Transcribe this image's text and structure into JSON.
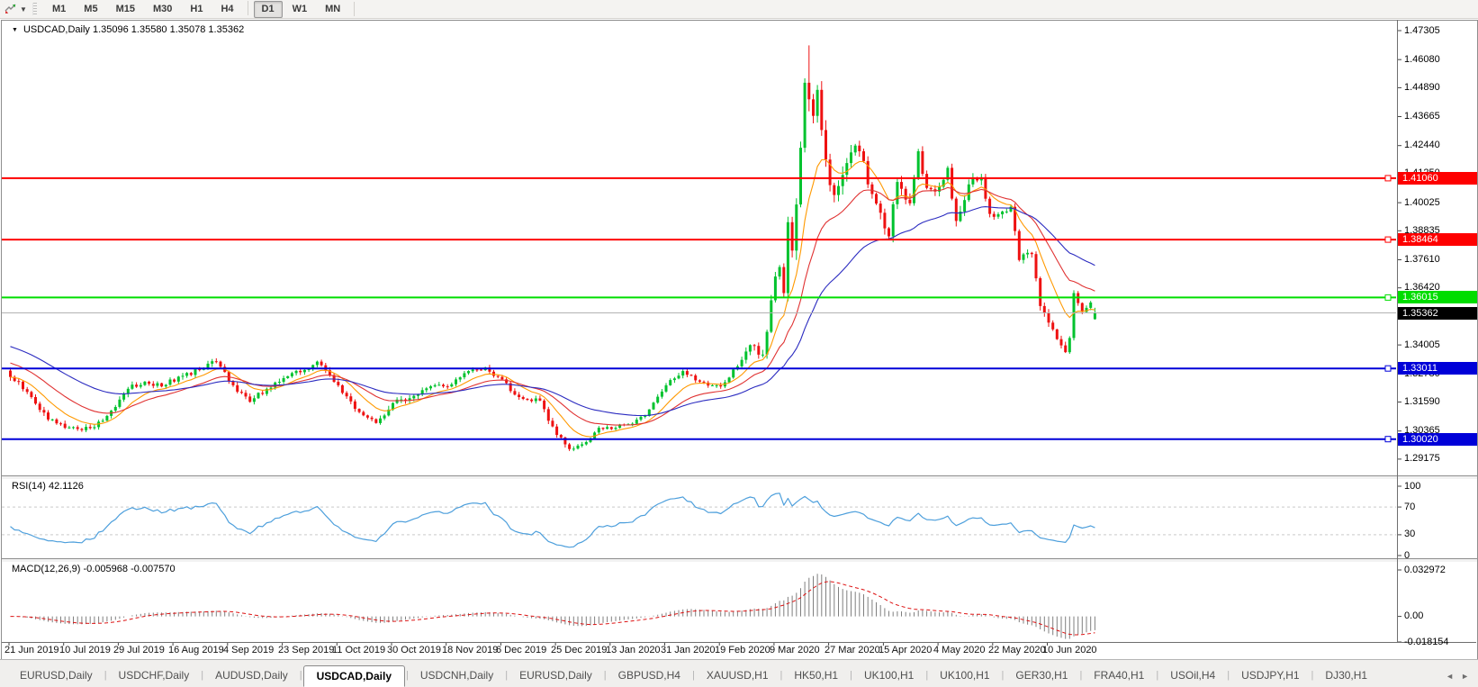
{
  "toolbar": {
    "timeframes": [
      "M1",
      "M5",
      "M15",
      "M30",
      "H1",
      "H4",
      "D1",
      "W1",
      "MN"
    ],
    "active_timeframe": "D1",
    "icon_caret": "▼"
  },
  "chart_header": {
    "dropdown_glyph": "▼",
    "title": "USDCAD,Daily",
    "ohlc": "1.35096 1.35580 1.35078 1.35362"
  },
  "chart_data": {
    "type": "candlestick",
    "symbol": "USDCAD",
    "timeframe": "Daily",
    "quote_ohlc": {
      "open": "1.35096",
      "high": "1.35580",
      "low": "1.35078",
      "close": "1.35362"
    },
    "price_axis_ticks": [
      "1.47305",
      "1.46080",
      "1.44890",
      "1.43665",
      "1.42440",
      "1.41250",
      "1.40025",
      "1.38835",
      "1.37610",
      "1.36420",
      "1.35195",
      "1.34005",
      "1.32780",
      "1.31590",
      "1.30365",
      "1.29175"
    ],
    "horizontal_lines": [
      {
        "label": "1.41060",
        "value": 1.4106,
        "color": "#fe0000"
      },
      {
        "label": "1.38464",
        "value": 1.38464,
        "color": "#fe0000"
      },
      {
        "label": "1.36015",
        "value": 1.36015,
        "color": "#00dd00"
      },
      {
        "label": "1.33011",
        "value": 1.33011,
        "color": "#0000d8"
      },
      {
        "label": "1.30020",
        "value": 1.3002,
        "color": "#0000d8"
      }
    ],
    "current_price": {
      "label": "1.35362",
      "value": 1.35362,
      "line_color": "#b2b2b2",
      "box_color": "#000000"
    },
    "x_axis_dates": [
      "21 Jun 2019",
      "10 Jul 2019",
      "29 Jul 2019",
      "16 Aug 2019",
      "4 Sep 2019",
      "23 Sep 2019",
      "11 Oct 2019",
      "30 Oct 2019",
      "18 Nov 2019",
      "6 Dec 2019",
      "25 Dec 2019",
      "13 Jan 2020",
      "31 Jan 2020",
      "19 Feb 2020",
      "9 Mar 2020",
      "27 Mar 2020",
      "15 Apr 2020",
      "4 May 2020",
      "22 May 2020",
      "10 Jun 2020"
    ],
    "bars_per_label": 13,
    "total_slots": 330,
    "candle_colors": {
      "up": "#00c22e",
      "down": "#ee1111"
    },
    "anchors": [
      [
        0,
        1.3265,
        0.0012
      ],
      [
        5,
        1.318,
        0.0012
      ],
      [
        9,
        1.3085,
        0.0011
      ],
      [
        13,
        1.305,
        0.001
      ],
      [
        17,
        1.304,
        0.001
      ],
      [
        22,
        1.308,
        0.001
      ],
      [
        28,
        1.3215,
        0.0012
      ],
      [
        32,
        1.3245,
        0.001
      ],
      [
        36,
        1.3225,
        0.001
      ],
      [
        41,
        1.327,
        0.001
      ],
      [
        46,
        1.33,
        0.001
      ],
      [
        49,
        1.333,
        0.0012
      ],
      [
        53,
        1.323,
        0.0012
      ],
      [
        57,
        1.316,
        0.001
      ],
      [
        61,
        1.3215,
        0.001
      ],
      [
        65,
        1.326,
        0.001
      ],
      [
        70,
        1.3295,
        0.001
      ],
      [
        73,
        1.333,
        0.001
      ],
      [
        78,
        1.323,
        0.0012
      ],
      [
        82,
        1.313,
        0.001
      ],
      [
        87,
        1.307,
        0.001
      ],
      [
        91,
        1.3155,
        0.0013
      ],
      [
        96,
        1.3185,
        0.001
      ],
      [
        101,
        1.323,
        0.001
      ],
      [
        104,
        1.3225,
        0.0009
      ],
      [
        109,
        1.329,
        0.0009
      ],
      [
        113,
        1.3305,
        0.0009
      ],
      [
        117,
        1.3255,
        0.001
      ],
      [
        121,
        1.318,
        0.001
      ],
      [
        126,
        1.3165,
        0.0009
      ],
      [
        130,
        1.302,
        0.0012
      ],
      [
        133,
        1.296,
        0.001
      ],
      [
        137,
        1.299,
        0.0008
      ],
      [
        140,
        1.305,
        0.0008
      ],
      [
        143,
        1.3045,
        0.0008
      ],
      [
        147,
        1.3065,
        0.0008
      ],
      [
        151,
        1.31,
        0.0008
      ],
      [
        156,
        1.323,
        0.001
      ],
      [
        160,
        1.329,
        0.0009
      ],
      [
        164,
        1.3245,
        0.0009
      ],
      [
        169,
        1.3225,
        0.0009
      ],
      [
        173,
        1.331,
        0.0012
      ],
      [
        176,
        1.34,
        0.0015
      ],
      [
        179,
        1.336,
        0.0015
      ],
      [
        182,
        1.369,
        0.003
      ],
      [
        183,
        1.373,
        0.0034
      ],
      [
        184,
        1.362,
        0.0034
      ],
      [
        185,
        1.392,
        0.004
      ],
      [
        186,
        1.38,
        0.004
      ],
      [
        187,
        1.3995,
        0.004
      ],
      [
        188,
        1.4235,
        0.0044
      ],
      [
        189,
        1.451,
        0.0044
      ],
      [
        190,
        1.444,
        0.005
      ],
      [
        191,
        1.437,
        0.0044
      ],
      [
        192,
        1.448,
        0.004
      ],
      [
        193,
        1.431,
        0.0038
      ],
      [
        194,
        1.4185,
        0.0034
      ],
      [
        196,
        1.4035,
        0.003
      ],
      [
        198,
        1.412,
        0.0027
      ],
      [
        200,
        1.4215,
        0.0025
      ],
      [
        202,
        1.422,
        0.0024
      ],
      [
        204,
        1.408,
        0.0022
      ],
      [
        207,
        1.396,
        0.0021
      ],
      [
        209,
        1.386,
        0.002
      ],
      [
        211,
        1.409,
        0.0022
      ],
      [
        214,
        1.4,
        0.002
      ],
      [
        216,
        1.422,
        0.0022
      ],
      [
        218,
        1.4065,
        0.002
      ],
      [
        221,
        1.407,
        0.0018
      ],
      [
        223,
        1.415,
        0.0018
      ],
      [
        225,
        1.3925,
        0.0018
      ],
      [
        228,
        1.408,
        0.0018
      ],
      [
        231,
        1.411,
        0.0016
      ],
      [
        233,
        1.3955,
        0.0016
      ],
      [
        236,
        1.3965,
        0.0014
      ],
      [
        238,
        1.3985,
        0.0014
      ],
      [
        240,
        1.376,
        0.0016
      ],
      [
        243,
        1.3785,
        0.0014
      ],
      [
        245,
        1.3565,
        0.0016
      ],
      [
        247,
        1.3495,
        0.0014
      ],
      [
        249,
        1.3425,
        0.0012
      ],
      [
        251,
        1.337,
        0.0012
      ],
      [
        252,
        1.343,
        0.0012
      ],
      [
        253,
        1.362,
        0.0013
      ],
      [
        255,
        1.354,
        0.0011
      ],
      [
        257,
        1.358,
        0.0009
      ],
      [
        258,
        1.35362,
        0.0008
      ]
    ],
    "extremes": {
      "high": {
        "bar": 190,
        "value": 1.4668
      },
      "low": {
        "bar": 133,
        "value": 1.2952
      }
    },
    "moving_averages": [
      {
        "name": "fast",
        "period": 10,
        "color": "#ff9900",
        "seed": 1.3265
      },
      {
        "name": "medium",
        "period": 22,
        "color": "#e03232",
        "seed": 1.333
      },
      {
        "name": "slow",
        "period": 45,
        "color": "#2b2bc0",
        "seed": 1.34
      }
    ],
    "rsi": {
      "label": "RSI(14) 42.1126",
      "period": 14,
      "value": 42.1126,
      "color": "#4d9fdc",
      "levels": [
        70,
        30
      ],
      "scale_labels": [
        {
          "text": "100",
          "value": 100
        },
        {
          "text": "70",
          "value": 70
        },
        {
          "text": "30",
          "value": 30
        },
        {
          "text": "0",
          "value": 0
        }
      ]
    },
    "macd": {
      "label": "MACD(12,26,9) -0.005968 -0.007570",
      "fast": 12,
      "slow": 26,
      "signal": 9,
      "hist_color": "#7f7f7f",
      "signal_color": "#dd1111",
      "scale_labels": [
        {
          "text": "0.032972",
          "value": 0.032972
        },
        {
          "text": "0.00",
          "value": 0
        },
        {
          "text": "-0.018154",
          "value": -0.018154
        }
      ]
    }
  },
  "tab_bar": {
    "tabs": [
      "EURUSD,Daily",
      "USDCHF,Daily",
      "AUDUSD,Daily",
      "USDCAD,Daily",
      "USDCNH,Daily",
      "EURUSD,Daily",
      "GBPUSD,H4",
      "XAUUSD,H1",
      "HK50,H1",
      "UK100,H1",
      "UK100,H1",
      "GER30,H1",
      "FRA40,H1",
      "USOil,H4",
      "USDJPY,H1",
      "DJ30,H1"
    ],
    "active_index": 3,
    "scroll_left": "◄",
    "scroll_right": "►"
  }
}
